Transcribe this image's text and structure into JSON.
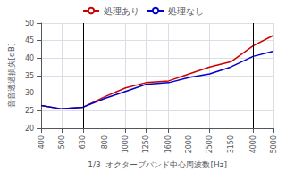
{
  "chart_data": {
    "type": "line",
    "xlabel": "1/3  オクターブバンド中心周波数[Hz]",
    "ylabel": "音音透過損失[dB]",
    "x": [
      400,
      500,
      630,
      800,
      1000,
      1250,
      1600,
      2000,
      2500,
      3150,
      4000,
      5000
    ],
    "series": [
      {
        "name": "処理あり",
        "color": "#cc0000",
        "values": [
          26.5,
          25.5,
          26.0,
          29.0,
          31.5,
          33.0,
          33.5,
          35.5,
          37.5,
          39.0,
          43.5,
          46.5
        ]
      },
      {
        "name": "処理なし",
        "color": "#0000cc",
        "values": [
          26.5,
          25.5,
          26.0,
          28.5,
          30.5,
          32.5,
          33.0,
          34.5,
          35.5,
          37.5,
          40.5,
          42.0
        ]
      }
    ],
    "xlim": [
      400,
      5000
    ],
    "ylim": [
      20,
      50
    ],
    "xticks": [
      400,
      500,
      630,
      800,
      1000,
      1250,
      1600,
      2000,
      2500,
      3150,
      4000,
      5000
    ],
    "yticks": [
      20,
      25,
      30,
      35,
      40,
      45,
      50
    ],
    "log": "x",
    "grid": true,
    "legend": "top",
    "vlines": [
      630,
      800,
      2000,
      4000
    ]
  }
}
